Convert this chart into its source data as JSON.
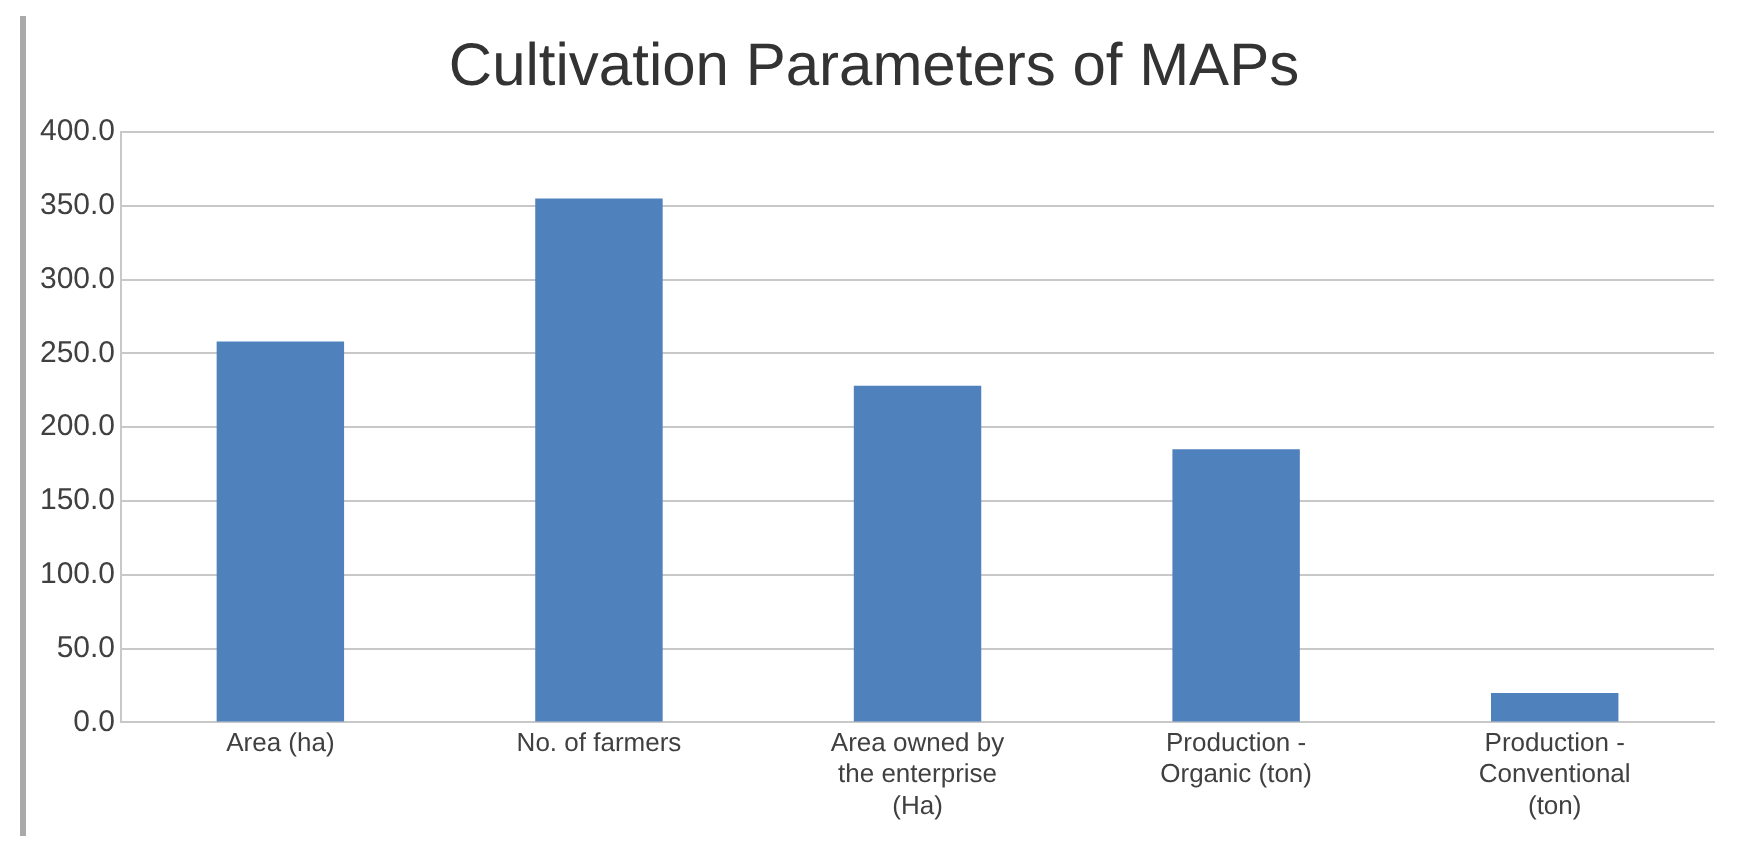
{
  "chart_data": {
    "type": "bar",
    "title": "Cultivation Parameters of MAPs",
    "categories": [
      "Area (ha)",
      "No. of farmers",
      "Area owned by the enterprise (Ha)",
      "Production - Organic (ton)",
      "Production - Conventional (ton)"
    ],
    "values": [
      258,
      355,
      228,
      185,
      20
    ],
    "color": "#4f81bd",
    "ylim": [
      0,
      400
    ],
    "yticks": [
      {
        "value": 0,
        "label": "0.0"
      },
      {
        "value": 50,
        "label": "50.0"
      },
      {
        "value": 100,
        "label": "100.0"
      },
      {
        "value": 150,
        "label": "150.0"
      },
      {
        "value": 200,
        "label": "200.0"
      },
      {
        "value": 250,
        "label": "250.0"
      },
      {
        "value": 300,
        "label": "300.0"
      },
      {
        "value": 350,
        "label": "350.0"
      },
      {
        "value": 400,
        "label": "400.0"
      }
    ],
    "grid": "y",
    "legend": false
  }
}
